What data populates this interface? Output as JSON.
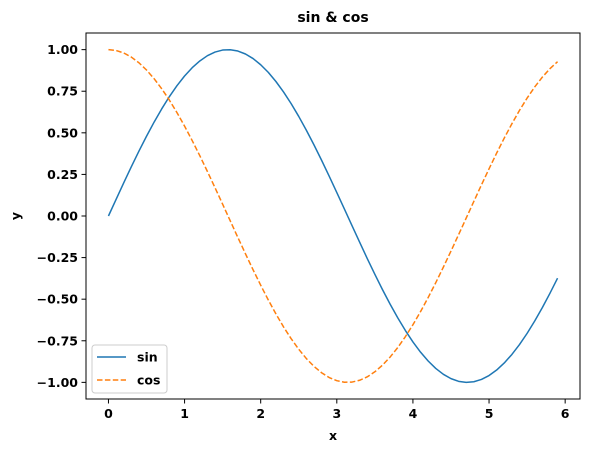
{
  "chart_data": {
    "type": "line",
    "title": "sin & cos",
    "xlabel": "x",
    "ylabel": "y",
    "xlim": [
      -0.295,
      6.195
    ],
    "ylim": [
      -1.1,
      1.1
    ],
    "grid": false,
    "legend_position": "lower-left",
    "x_ticks": [
      0,
      1,
      2,
      3,
      4,
      5,
      6
    ],
    "x_tick_labels": [
      "0",
      "1",
      "2",
      "3",
      "4",
      "5",
      "6"
    ],
    "y_ticks": [
      1.0,
      0.75,
      0.5,
      0.25,
      0.0,
      -0.25,
      -0.5,
      -0.75,
      -1.0
    ],
    "y_tick_labels": [
      "1.00",
      "0.75",
      "0.50",
      "0.25",
      "0.00",
      "−0.25",
      "−0.50",
      "−0.75",
      "−1.00"
    ],
    "x": [
      0.0,
      0.1,
      0.2,
      0.3,
      0.4,
      0.5,
      0.6,
      0.7,
      0.8,
      0.9,
      1.0,
      1.1,
      1.2,
      1.3,
      1.4,
      1.5,
      1.6,
      1.7,
      1.8,
      1.9,
      2.0,
      2.1,
      2.2,
      2.3,
      2.4,
      2.5,
      2.6,
      2.7,
      2.8,
      2.9,
      3.0,
      3.1,
      3.2,
      3.3,
      3.4,
      3.5,
      3.6,
      3.7,
      3.8,
      3.9,
      4.0,
      4.1,
      4.2,
      4.3,
      4.4,
      4.5,
      4.6,
      4.7,
      4.8,
      4.9,
      5.0,
      5.1,
      5.2,
      5.3,
      5.4,
      5.5,
      5.6,
      5.7,
      5.8,
      5.9
    ],
    "series": [
      {
        "name": "sin",
        "color": "#1f77b4",
        "dash": "solid",
        "values": [
          0.0,
          0.0998,
          0.1987,
          0.2955,
          0.3894,
          0.4794,
          0.5646,
          0.6442,
          0.7174,
          0.7833,
          0.8415,
          0.8912,
          0.932,
          0.9636,
          0.9854,
          0.9975,
          0.9996,
          0.9917,
          0.9738,
          0.9463,
          0.9093,
          0.8632,
          0.8085,
          0.7457,
          0.6755,
          0.5985,
          0.5155,
          0.4274,
          0.335,
          0.2392,
          0.1411,
          0.0416,
          -0.0584,
          -0.1577,
          -0.2555,
          -0.3508,
          -0.4425,
          -0.5298,
          -0.6119,
          -0.6878,
          -0.7568,
          -0.8183,
          -0.8716,
          -0.9162,
          -0.9516,
          -0.9775,
          -0.9937,
          -0.9999,
          -0.9962,
          -0.9825,
          -0.9589,
          -0.9258,
          -0.8835,
          -0.8323,
          -0.7728,
          -0.7055,
          -0.6313,
          -0.5507,
          -0.4646,
          -0.3739
        ]
      },
      {
        "name": "cos",
        "color": "#ff7f0e",
        "dash": "dashed",
        "values": [
          1.0,
          0.995,
          0.9801,
          0.9553,
          0.9211,
          0.8776,
          0.8253,
          0.7648,
          0.6967,
          0.6216,
          0.5403,
          0.4536,
          0.3624,
          0.2675,
          0.17,
          0.0707,
          -0.0292,
          -0.1288,
          -0.2272,
          -0.3233,
          -0.4161,
          -0.5048,
          -0.5885,
          -0.6663,
          -0.7374,
          -0.8011,
          -0.8569,
          -0.904,
          -0.9422,
          -0.971,
          -0.99,
          -0.9991,
          -0.9983,
          -0.9875,
          -0.9668,
          -0.9365,
          -0.8968,
          -0.8481,
          -0.791,
          -0.7259,
          -0.6536,
          -0.5748,
          -0.4903,
          -0.4008,
          -0.3073,
          -0.2108,
          -0.1122,
          -0.0124,
          0.0875,
          0.1865,
          0.2837,
          0.378,
          0.4685,
          0.5544,
          0.6347,
          0.7087,
          0.7756,
          0.8347,
          0.8855,
          0.9275
        ]
      }
    ]
  }
}
